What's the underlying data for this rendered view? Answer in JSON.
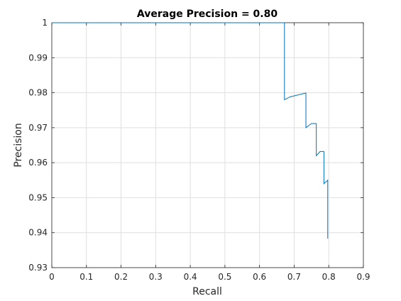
{
  "chart_data": {
    "type": "line",
    "title": "Average Precision = 0.80",
    "xlabel": "Recall",
    "ylabel": "Precision",
    "xlim": [
      0,
      0.9
    ],
    "ylim": [
      0.93,
      1
    ],
    "x_ticks": [
      0,
      0.1,
      0.2,
      0.3,
      0.4,
      0.5,
      0.6,
      0.7,
      0.8,
      0.9
    ],
    "x_tick_labels": [
      "0",
      "0.1",
      "0.2",
      "0.3",
      "0.4",
      "0.5",
      "0.6",
      "0.7",
      "0.8",
      "0.9"
    ],
    "y_ticks": [
      0.93,
      0.94,
      0.95,
      0.96,
      0.97,
      0.98,
      0.99,
      1
    ],
    "y_tick_labels": [
      "0.93",
      "0.94",
      "0.95",
      "0.96",
      "0.97",
      "0.98",
      "0.99",
      "1"
    ],
    "grid": true,
    "line_color": "#0072bd",
    "series": [
      {
        "x": [
          0,
          0.672,
          0.672,
          0.688,
          0.734,
          0.734,
          0.75,
          0.764,
          0.764,
          0.775,
          0.786,
          0.786,
          0.797,
          0.797
        ],
        "y": [
          1,
          1,
          0.978,
          0.9788,
          0.9799,
          0.97,
          0.9712,
          0.9712,
          0.962,
          0.9632,
          0.9632,
          0.954,
          0.955,
          0.9383
        ]
      }
    ]
  }
}
